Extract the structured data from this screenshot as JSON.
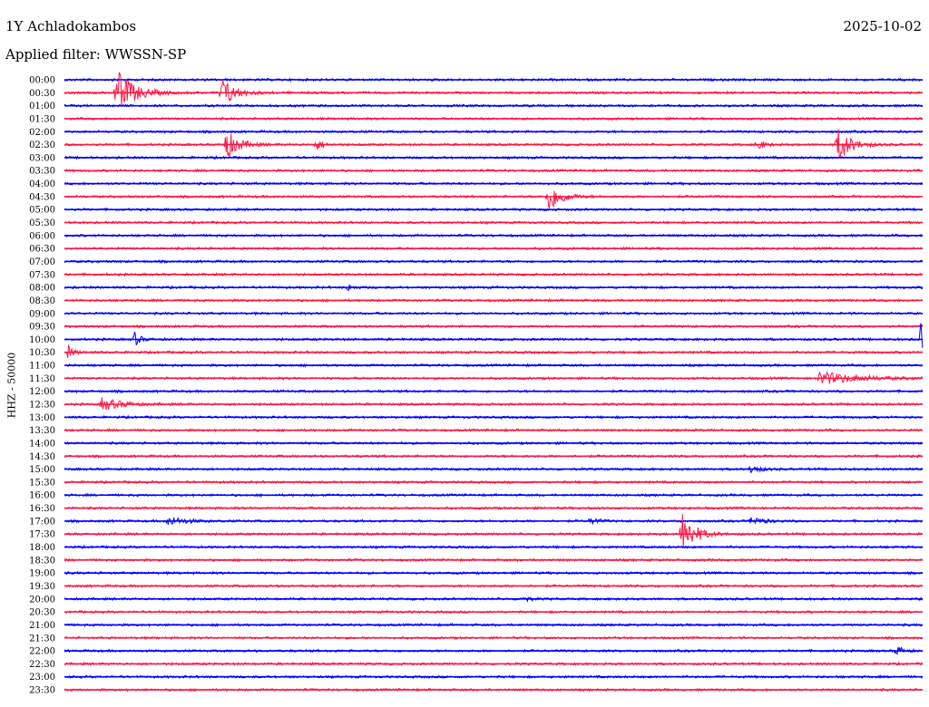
{
  "header": {
    "station": "1Y Achladokambos",
    "date": "2025-10-02",
    "filter": "Applied filter: WWSSN-SP"
  },
  "colors": {
    "trace_a": "#0000ff",
    "trace_b": "#ff1744"
  },
  "chart_data": {
    "type": "line",
    "title": "1Y Achladokambos",
    "ylabel": "HHZ - 50000",
    "rows": [
      "00:00",
      "00:30",
      "01:00",
      "01:30",
      "02:00",
      "02:30",
      "03:00",
      "03:30",
      "04:00",
      "04:30",
      "05:00",
      "05:30",
      "06:00",
      "06:30",
      "07:00",
      "07:30",
      "08:00",
      "08:30",
      "09:00",
      "09:30",
      "10:00",
      "10:30",
      "11:00",
      "11:30",
      "12:00",
      "12:30",
      "13:00",
      "13:30",
      "14:00",
      "14:30",
      "15:00",
      "15:30",
      "16:00",
      "16:30",
      "17:00",
      "17:30",
      "18:00",
      "18:30",
      "19:00",
      "19:30",
      "20:00",
      "20:30",
      "21:00",
      "21:30",
      "22:00",
      "22:30",
      "23:00",
      "23:30"
    ],
    "row_minutes": 30,
    "events": [
      {
        "row": "00:30",
        "minute": 1.8,
        "amplitude": 28,
        "duration": 1.2
      },
      {
        "row": "00:30",
        "minute": 5.5,
        "amplitude": 18,
        "duration": 0.9
      },
      {
        "row": "02:30",
        "minute": 5.6,
        "amplitude": 18,
        "duration": 0.9
      },
      {
        "row": "02:30",
        "minute": 8.8,
        "amplitude": 6,
        "duration": 0.5
      },
      {
        "row": "02:30",
        "minute": 24.2,
        "amplitude": 7,
        "duration": 0.5
      },
      {
        "row": "02:30",
        "minute": 27.0,
        "amplitude": 22,
        "duration": 0.9
      },
      {
        "row": "04:30",
        "minute": 16.9,
        "amplitude": 18,
        "duration": 0.9
      },
      {
        "row": "08:00",
        "minute": 9.9,
        "amplitude": 4,
        "duration": 0.4
      },
      {
        "row": "10:00",
        "minute": 2.4,
        "amplitude": 10,
        "duration": 0.4
      },
      {
        "row": "10:00",
        "minute": 29.9,
        "amplitude": 26,
        "duration": 0.2
      },
      {
        "row": "10:30",
        "minute": 0.1,
        "amplitude": 8,
        "duration": 0.4
      },
      {
        "row": "11:30",
        "minute": 26.4,
        "amplitude": 7,
        "duration": 2.8
      },
      {
        "row": "12:30",
        "minute": 1.3,
        "amplitude": 7,
        "duration": 1.5
      },
      {
        "row": "15:00",
        "minute": 24.0,
        "amplitude": 5,
        "duration": 0.6
      },
      {
        "row": "17:00",
        "minute": 3.6,
        "amplitude": 5,
        "duration": 1.2
      },
      {
        "row": "17:00",
        "minute": 18.4,
        "amplitude": 4,
        "duration": 0.5
      },
      {
        "row": "17:00",
        "minute": 24.0,
        "amplitude": 5,
        "duration": 0.8
      },
      {
        "row": "17:30",
        "minute": 21.6,
        "amplitude": 24,
        "duration": 0.9
      },
      {
        "row": "20:00",
        "minute": 16.0,
        "amplitude": 5,
        "duration": 0.4
      },
      {
        "row": "22:00",
        "minute": 29.1,
        "amplitude": 6,
        "duration": 0.4
      }
    ]
  }
}
